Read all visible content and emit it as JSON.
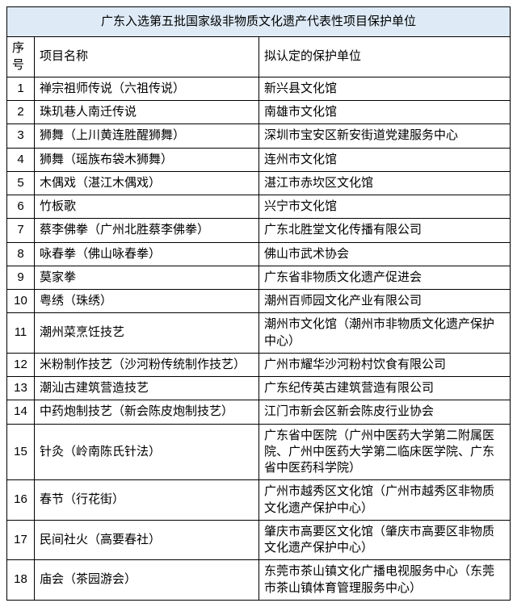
{
  "colors": {
    "title_bg": "#deebf7",
    "border": "#000000",
    "text": "#000000",
    "body_bg": "#ffffff"
  },
  "table": {
    "title": "广东入选第五批国家级非物质文化遗产代表性项目保护单位",
    "columns": {
      "seq": "序号",
      "name": "项目名称",
      "unit": "拟认定的保护单位"
    },
    "rows": [
      {
        "seq": "1",
        "name": "禅宗祖师传说（六祖传说）",
        "unit": "新兴县文化馆"
      },
      {
        "seq": "2",
        "name": "珠玑巷人南迁传说",
        "unit": "南雄市文化馆"
      },
      {
        "seq": "3",
        "name": "狮舞（上川黄连胜醒狮舞）",
        "unit": "深圳市宝安区新安街道党建服务中心"
      },
      {
        "seq": "4",
        "name": "狮舞（瑶族布袋木狮舞）",
        "unit": "连州市文化馆"
      },
      {
        "seq": "5",
        "name": "木偶戏（湛江木偶戏）",
        "unit": "湛江市赤坎区文化馆"
      },
      {
        "seq": "6",
        "name": "竹板歌",
        "unit": "兴宁市文化馆"
      },
      {
        "seq": "7",
        "name": "蔡李佛拳（广州北胜蔡李佛拳）",
        "unit": "广东北胜堂文化传播有限公司"
      },
      {
        "seq": "8",
        "name": "咏春拳（佛山咏春拳）",
        "unit": "佛山市武术协会"
      },
      {
        "seq": "9",
        "name": "莫家拳",
        "unit": "广东省非物质文化遗产促进会"
      },
      {
        "seq": "10",
        "name": "粤绣（珠绣）",
        "unit": "潮州百师园文化产业有限公司"
      },
      {
        "seq": "11",
        "name": "潮州菜烹饪技艺",
        "unit": "潮州市文化馆（潮州市非物质文化遗产保护中心）"
      },
      {
        "seq": "12",
        "name": "米粉制作技艺（沙河粉传统制作技艺）",
        "unit": "广州市耀华沙河粉村饮食有限公司"
      },
      {
        "seq": "13",
        "name": "潮汕古建筑营造技艺",
        "unit": "广东纪传英古建筑营造有限公司"
      },
      {
        "seq": "14",
        "name": "中药炮制技艺（新会陈皮炮制技艺）",
        "unit": "江门市新会区新会陈皮行业协会"
      },
      {
        "seq": "15",
        "name": "针灸（岭南陈氏针法）",
        "unit": "广东省中医院（广州中医药大学第二附属医院、广州中医药大学第二临床医学院、广东省中医药科学院）"
      },
      {
        "seq": "16",
        "name": "春节（行花街）",
        "unit": "广州市越秀区文化馆（广州市越秀区非物质文化遗产保护中心）"
      },
      {
        "seq": "17",
        "name": "民间社火（高要春社）",
        "unit": "肇庆市高要区文化馆（肇庆市高要区非物质文化遗产保护中心）"
      },
      {
        "seq": "18",
        "name": "庙会（茶园游会）",
        "unit": "东莞市茶山镇文化广播电视服务中心（东莞市茶山镇体育管理服务中心）"
      }
    ]
  }
}
